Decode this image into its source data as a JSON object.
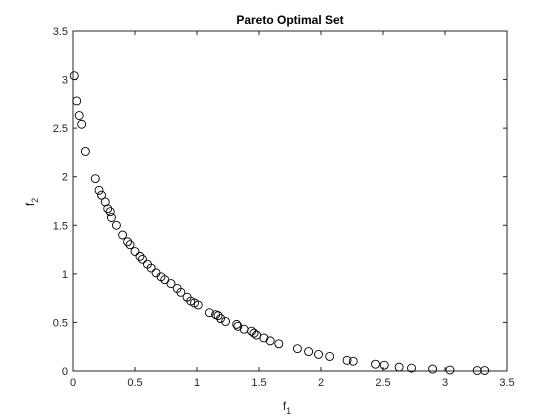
{
  "chart_data": {
    "type": "scatter",
    "title": "Pareto Optimal Set",
    "xlabel": {
      "base": "f",
      "sub": "1"
    },
    "ylabel": {
      "base": "f",
      "sub": "2"
    },
    "xlim": [
      0,
      3.5
    ],
    "ylim": [
      0,
      3.5
    ],
    "xticks": [
      0,
      0.5,
      1,
      1.5,
      2,
      2.5,
      3,
      3.5
    ],
    "yticks": [
      0,
      0.5,
      1,
      1.5,
      2,
      2.5,
      3,
      3.5
    ],
    "xtick_labels": [
      "0",
      "0.5",
      "1",
      "1.5",
      "2",
      "2.5",
      "3",
      "3.5"
    ],
    "ytick_labels": [
      "0",
      "0.5",
      "1",
      "1.5",
      "2",
      "2.5",
      "3",
      "3.5"
    ],
    "grid": false,
    "marker": "open-circle",
    "marker_color": "#000000",
    "points": [
      [
        0.01,
        3.04
      ],
      [
        0.03,
        2.78
      ],
      [
        0.05,
        2.63
      ],
      [
        0.07,
        2.54
      ],
      [
        0.1,
        2.26
      ],
      [
        0.18,
        1.98
      ],
      [
        0.21,
        1.86
      ],
      [
        0.23,
        1.81
      ],
      [
        0.26,
        1.74
      ],
      [
        0.28,
        1.67
      ],
      [
        0.3,
        1.64
      ],
      [
        0.31,
        1.58
      ],
      [
        0.35,
        1.5
      ],
      [
        0.4,
        1.4
      ],
      [
        0.44,
        1.33
      ],
      [
        0.46,
        1.3
      ],
      [
        0.5,
        1.23
      ],
      [
        0.54,
        1.18
      ],
      [
        0.56,
        1.15
      ],
      [
        0.6,
        1.1
      ],
      [
        0.63,
        1.06
      ],
      [
        0.67,
        1.01
      ],
      [
        0.71,
        0.97
      ],
      [
        0.74,
        0.94
      ],
      [
        0.79,
        0.9
      ],
      [
        0.84,
        0.85
      ],
      [
        0.87,
        0.81
      ],
      [
        0.92,
        0.76
      ],
      [
        0.95,
        0.72
      ],
      [
        0.98,
        0.7
      ],
      [
        1.01,
        0.68
      ],
      [
        1.1,
        0.6
      ],
      [
        1.15,
        0.58
      ],
      [
        1.17,
        0.57
      ],
      [
        1.19,
        0.54
      ],
      [
        1.23,
        0.51
      ],
      [
        1.32,
        0.48
      ],
      [
        1.33,
        0.46
      ],
      [
        1.38,
        0.43
      ],
      [
        1.44,
        0.41
      ],
      [
        1.46,
        0.39
      ],
      [
        1.48,
        0.37
      ],
      [
        1.54,
        0.34
      ],
      [
        1.59,
        0.31
      ],
      [
        1.66,
        0.28
      ],
      [
        1.81,
        0.23
      ],
      [
        1.9,
        0.2
      ],
      [
        1.98,
        0.17
      ],
      [
        2.07,
        0.15
      ],
      [
        2.21,
        0.11
      ],
      [
        2.26,
        0.1
      ],
      [
        2.44,
        0.07
      ],
      [
        2.51,
        0.06
      ],
      [
        2.63,
        0.04
      ],
      [
        2.73,
        0.03
      ],
      [
        2.9,
        0.02
      ],
      [
        3.04,
        0.01
      ],
      [
        3.26,
        0.005
      ],
      [
        3.32,
        0.005
      ]
    ]
  }
}
